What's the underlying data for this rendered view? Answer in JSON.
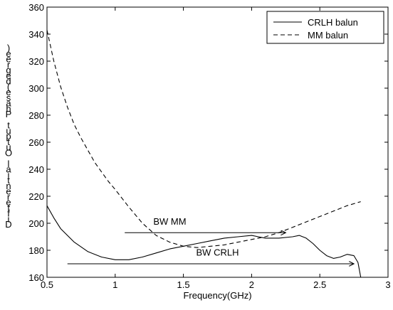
{
  "chart_data": {
    "type": "line",
    "xlabel": "Frequency(GHz)",
    "ylabel": "Differential Output Phase(degree)",
    "ylabel_chars": [
      "D",
      "i",
      "f",
      "f",
      "e",
      "r",
      "e",
      "n",
      "t",
      "i",
      "a",
      "l",
      " ",
      "O",
      "u",
      "t",
      "p",
      "u",
      "t",
      " ",
      "P",
      "h",
      "a",
      "s",
      "e",
      "(",
      "d",
      "e",
      "g",
      "r",
      "e",
      "e",
      ")"
    ],
    "xlim": [
      0.5,
      3
    ],
    "ylim": [
      160,
      360
    ],
    "xticks": [
      "0.5",
      "1",
      "1.5",
      "2",
      "2.5",
      "3"
    ],
    "yticks": [
      "160",
      "180",
      "200",
      "220",
      "240",
      "260",
      "280",
      "300",
      "320",
      "340",
      "360"
    ],
    "grid": false,
    "legend_position": "top-right",
    "series": [
      {
        "name": "CRLH balun",
        "style": "solid",
        "color": "#000000",
        "x": [
          0.5,
          0.55,
          0.6,
          0.7,
          0.8,
          0.9,
          1.0,
          1.1,
          1.2,
          1.3,
          1.4,
          1.5,
          1.6,
          1.7,
          1.8,
          1.9,
          2.0,
          2.05,
          2.1,
          2.2,
          2.3,
          2.35,
          2.4,
          2.45,
          2.5,
          2.55,
          2.6,
          2.65,
          2.7,
          2.75,
          2.78,
          2.8
        ],
        "y": [
          213,
          204,
          196,
          186,
          179,
          175,
          173,
          173,
          175,
          178,
          181,
          183,
          185,
          187,
          189,
          190,
          191,
          190,
          189,
          189,
          190,
          191,
          189,
          185,
          180,
          176,
          174,
          175,
          177,
          176,
          171,
          160
        ]
      },
      {
        "name": "MM balun",
        "style": "dashed",
        "color": "#000000",
        "x": [
          0.5,
          0.55,
          0.6,
          0.65,
          0.7,
          0.75,
          0.8,
          0.85,
          0.9,
          0.95,
          1.0,
          1.1,
          1.2,
          1.3,
          1.4,
          1.5,
          1.6,
          1.7,
          1.8,
          1.9,
          2.0,
          2.1,
          2.2,
          2.3,
          2.4,
          2.5,
          2.6,
          2.7,
          2.8
        ],
        "y": [
          343,
          320,
          301,
          286,
          273,
          263,
          254,
          245,
          238,
          231,
          225,
          212,
          200,
          191,
          186,
          183,
          182,
          183,
          184,
          186,
          188,
          190,
          193,
          197,
          201,
          205,
          209,
          213,
          216
        ]
      }
    ],
    "annotations": [
      {
        "text": "BW MM",
        "arrow_from": [
          1.07,
          193
        ],
        "arrow_to": [
          2.25,
          193
        ],
        "label_at": [
          1.4,
          199
        ]
      },
      {
        "text": "BW CRLH",
        "arrow_from": [
          0.65,
          170
        ],
        "arrow_to": [
          2.75,
          170
        ],
        "label_at": [
          1.75,
          176
        ]
      }
    ]
  }
}
